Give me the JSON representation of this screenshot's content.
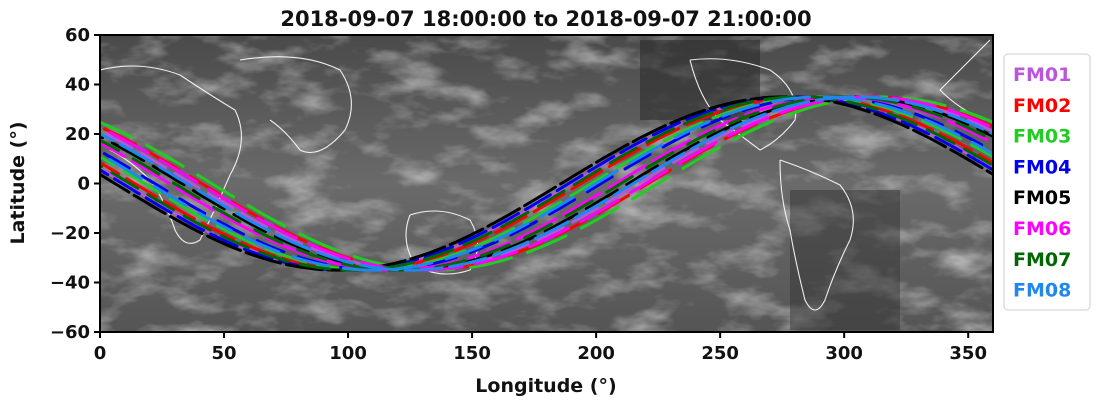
{
  "chart_data": {
    "type": "line",
    "title": "2018-09-07 18:00:00 to 2018-09-07 21:00:00",
    "xlabel": "Longitude (°)",
    "ylabel": "Latitude (°)",
    "xlim": [
      0,
      360
    ],
    "ylim": [
      -60,
      60
    ],
    "xticks": [
      "0",
      "50",
      "100",
      "150",
      "200",
      "250",
      "300",
      "350"
    ],
    "xtick_values": [
      0,
      50,
      100,
      150,
      200,
      250,
      300,
      350
    ],
    "yticks": [
      "60",
      "40",
      "20",
      "0",
      "−20",
      "−40",
      "−60"
    ],
    "ytick_values": [
      60,
      40,
      20,
      0,
      -20,
      -40,
      -60
    ],
    "grid": false,
    "legend_position": "outside-right",
    "background": "grayscale infrared satellite image with white coastlines",
    "track_model": {
      "shape": "sinusoid",
      "amplitude_deg": 35,
      "trough_longitude_range": [
        95,
        135
      ],
      "description": "ground tracks reach about 35° S near 105–130° E and about 35° N near 285–310° E"
    },
    "series": [
      {
        "name": "FM01",
        "color": "#bb55dd",
        "phases": [
          100,
          127
        ]
      },
      {
        "name": "FM02",
        "color": "#ff0000",
        "phases": [
          104,
          131
        ]
      },
      {
        "name": "FM03",
        "color": "#22cc22",
        "phases": [
          108,
          135
        ]
      },
      {
        "name": "FM04",
        "color": "#0000ee",
        "phases": [
          112,
          99
        ]
      },
      {
        "name": "FM05",
        "color": "#000000",
        "phases": [
          96,
          123
        ]
      },
      {
        "name": "FM06",
        "color": "#ff00ff",
        "phases": [
          118,
          130
        ]
      },
      {
        "name": "FM07",
        "color": "#006600",
        "phases": [
          102,
          120
        ]
      },
      {
        "name": "FM08",
        "color": "#1e88ee",
        "phases": [
          110,
          125
        ]
      }
    ]
  }
}
